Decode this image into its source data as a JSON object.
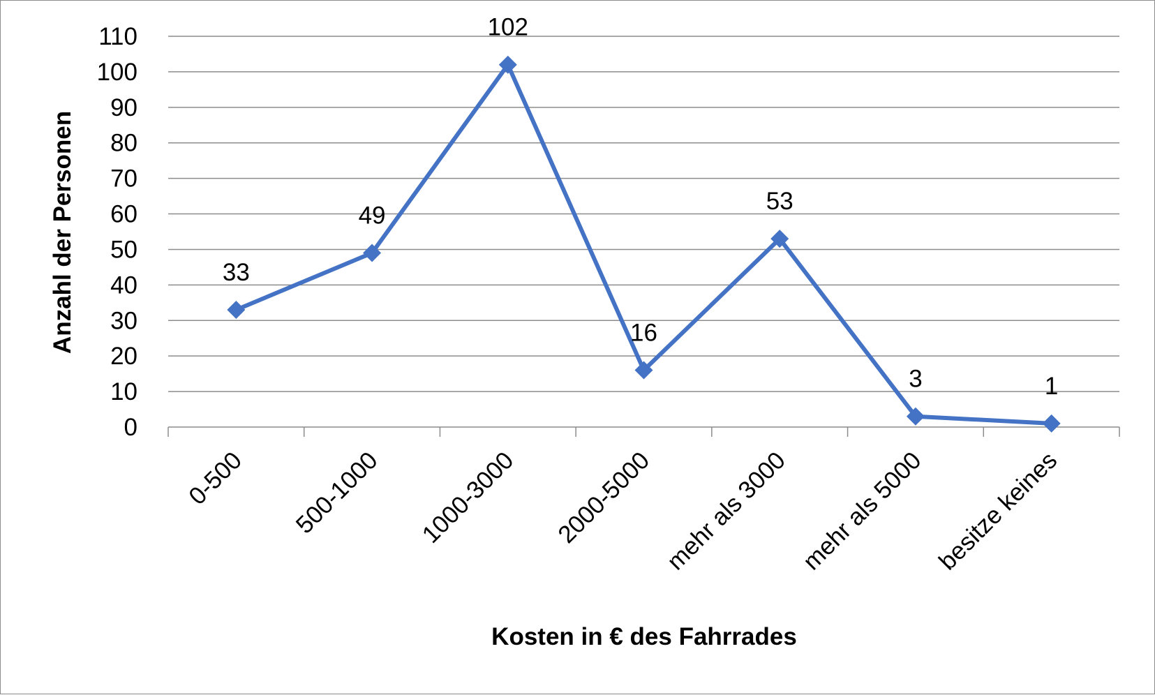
{
  "chart_data": {
    "type": "line",
    "title": "",
    "xlabel": "Kosten in € des Fahrrades",
    "ylabel": "Anzahl der Personen",
    "categories": [
      "0-500",
      "500-1000",
      "1000-3000",
      "2000-5000",
      "mehr als 3000",
      "mehr als 5000",
      "besitze keines"
    ],
    "series": [
      {
        "values": [
          33,
          49,
          102,
          16,
          53,
          3,
          1
        ],
        "color": "#4472C4"
      }
    ],
    "data_labels": [
      "33",
      "49",
      "102",
      "16",
      "53",
      "3",
      "1"
    ],
    "ylim": [
      0,
      110
    ],
    "y_ticks": [
      "0",
      "10",
      "20",
      "30",
      "40",
      "50",
      "60",
      "70",
      "80",
      "90",
      "100",
      "110"
    ],
    "grid": true,
    "legend": "none",
    "marker": "diamond"
  }
}
